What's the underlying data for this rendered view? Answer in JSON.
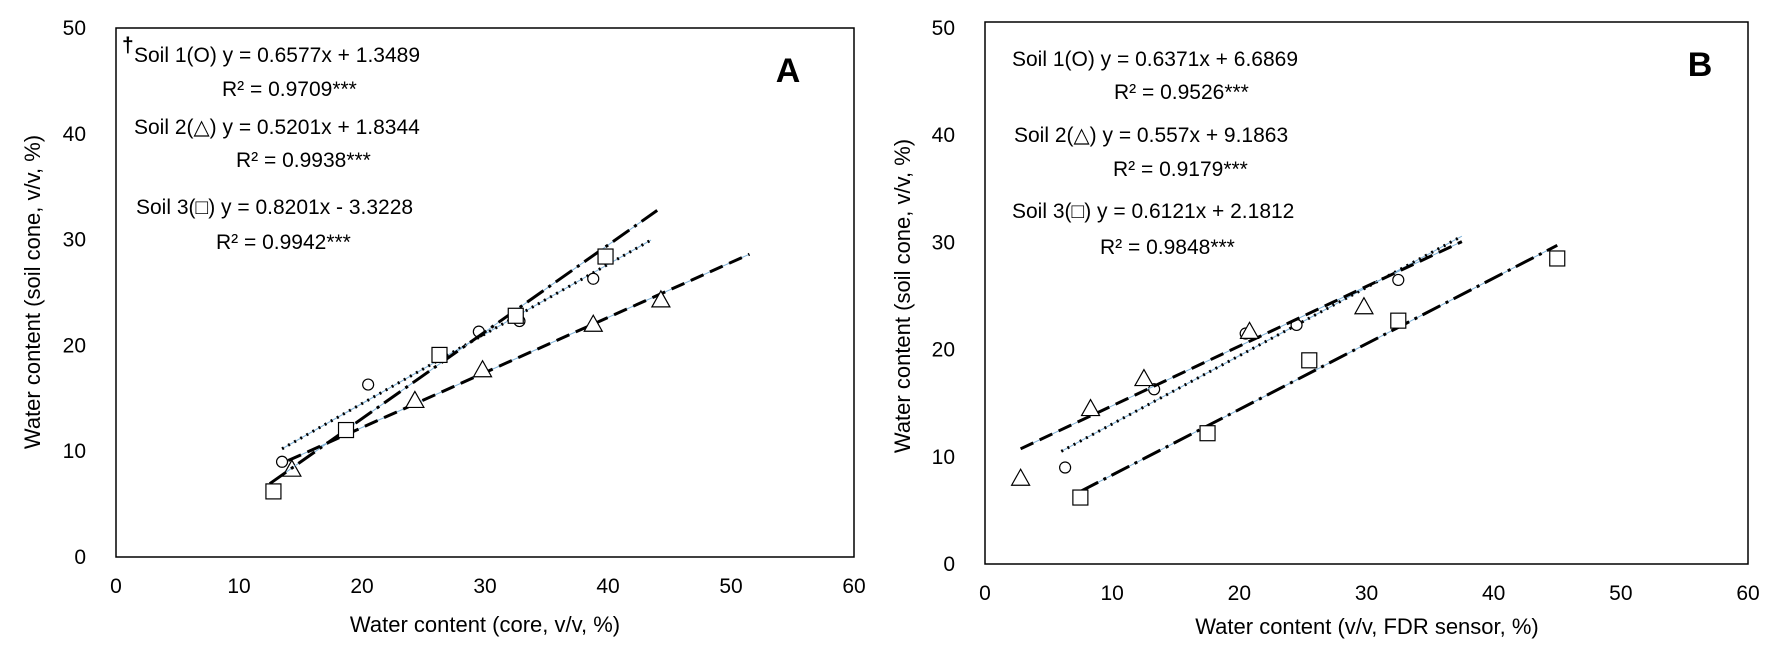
{
  "chart_data": [
    {
      "type": "scatter",
      "panel_label": "A",
      "xlabel": "Water content (core, v/v, %)",
      "ylabel": "Water content (soil cone, v/v, %)",
      "xlim": [
        0,
        60
      ],
      "ylim": [
        0,
        50
      ],
      "xticks": [
        "0",
        "10",
        "20",
        "30",
        "40",
        "50",
        "60"
      ],
      "yticks": [
        "0",
        "10",
        "20",
        "30",
        "40",
        "50"
      ],
      "series": [
        {
          "marker": "circle",
          "line_style": "dotted",
          "equation": "Soil 1(O)  y = 0.6577x + 1.3489",
          "equation_marker": "†",
          "r2": "R² = 0.9709***",
          "slope": 0.6577,
          "intercept": 1.3489,
          "x_range": [
            13.5,
            43.5
          ],
          "points": [
            [
              13.5,
              9.0
            ],
            [
              20.5,
              16.3
            ],
            [
              29.5,
              21.3
            ],
            [
              32.8,
              22.3
            ],
            [
              38.8,
              26.3
            ]
          ]
        },
        {
          "marker": "triangle",
          "line_style": "dashed",
          "equation": "Soil 2(△)  y = 0.5201x + 1.8344",
          "r2": "R² = 0.9938***",
          "slope": 0.5201,
          "intercept": 1.8344,
          "x_range": [
            14.0,
            51.5
          ],
          "points": [
            [
              14.3,
              8.3
            ],
            [
              24.3,
              14.8
            ],
            [
              29.8,
              17.7
            ],
            [
              38.8,
              22.0
            ],
            [
              44.3,
              24.3
            ]
          ]
        },
        {
          "marker": "square",
          "line_style": "dash-dot",
          "equation": "Soil 3(□)  y = 0.8201x - 3.3228",
          "r2": "R² = 0.9942***",
          "slope": 0.8201,
          "intercept": -3.3228,
          "x_range": [
            12.5,
            44.0
          ],
          "points": [
            [
              12.8,
              6.2
            ],
            [
              18.7,
              12.0
            ],
            [
              26.3,
              19.1
            ],
            [
              32.5,
              22.8
            ],
            [
              39.8,
              28.4
            ]
          ]
        }
      ]
    },
    {
      "type": "scatter",
      "panel_label": "B",
      "xlabel": "Water content (v/v, FDR sensor, %)",
      "ylabel": "Water content (soil cone, v/v, %)",
      "xlim": [
        0,
        60
      ],
      "ylim": [
        0,
        50
      ],
      "xticks": [
        "0",
        "10",
        "20",
        "30",
        "40",
        "50",
        "60"
      ],
      "yticks": [
        "0",
        "10",
        "20",
        "30",
        "40",
        "50"
      ],
      "series": [
        {
          "marker": "circle",
          "line_style": "dotted",
          "equation": "Soil 1(O)  y = 0.6371x + 6.6869",
          "r2": "R² = 0.9526***",
          "slope": 0.6371,
          "intercept": 6.6869,
          "x_range": [
            6.0,
            37.5
          ],
          "points": [
            [
              6.3,
              9.0
            ],
            [
              13.3,
              16.3
            ],
            [
              20.5,
              21.5
            ],
            [
              24.5,
              22.3
            ],
            [
              32.5,
              26.5
            ]
          ]
        },
        {
          "marker": "triangle",
          "line_style": "dashed",
          "equation": "Soil 2(△)  y = 0.557x + 9.1863",
          "r2": "R² = 0.9179***",
          "slope": 0.557,
          "intercept": 9.1863,
          "x_range": [
            2.8,
            37.5
          ],
          "points": [
            [
              2.8,
              8.0
            ],
            [
              8.3,
              14.5
            ],
            [
              12.5,
              17.3
            ],
            [
              20.8,
              21.7
            ],
            [
              29.8,
              24.0
            ]
          ]
        },
        {
          "marker": "square",
          "line_style": "dash-dot",
          "equation": "Soil 3(□)  y = 0.6121x + 2.1812",
          "r2": "R² = 0.9848***",
          "slope": 0.6121,
          "intercept": 2.1812,
          "x_range": [
            7.5,
            45.0
          ],
          "points": [
            [
              7.5,
              6.2
            ],
            [
              17.5,
              12.2
            ],
            [
              25.5,
              19.0
            ],
            [
              32.5,
              22.7
            ],
            [
              45.0,
              28.5
            ]
          ]
        }
      ]
    }
  ]
}
